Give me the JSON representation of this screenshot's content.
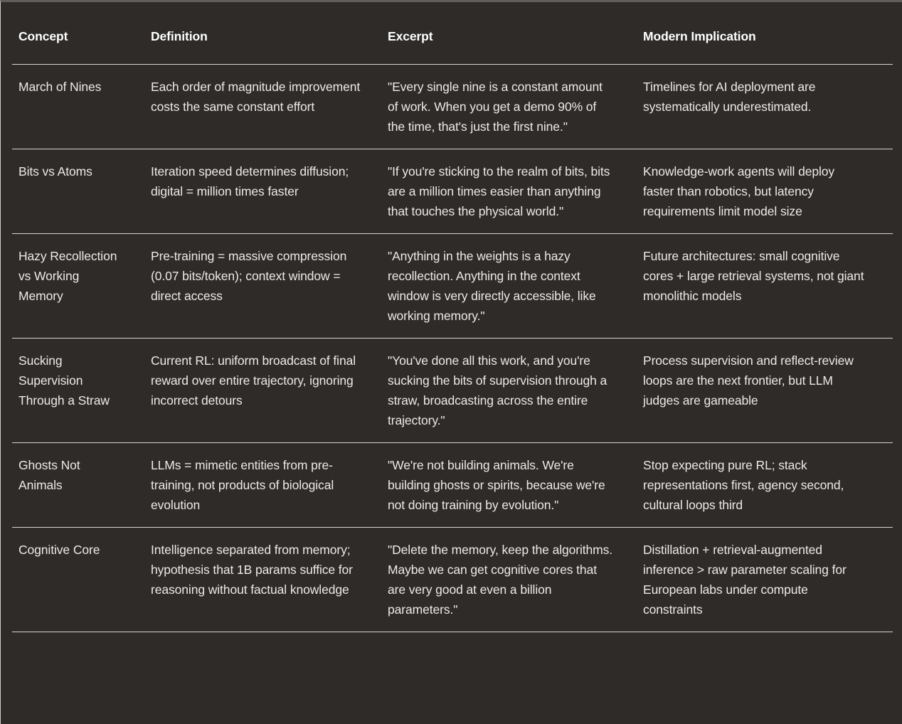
{
  "colors": {
    "background": "#2e2b29",
    "divider": "#d8d5d1",
    "header_text": "#ffffff",
    "body_text": "#eceae6"
  },
  "chart_data": {
    "type": "table",
    "columns": [
      "Concept",
      "Definition",
      "Excerpt",
      "Modern Implication"
    ],
    "rows": [
      {
        "concept": "March of Nines",
        "definition": "Each order of magnitude improvement costs the same constant effort",
        "excerpt": "\"Every single nine is a constant amount of work. When you get a demo 90% of the time, that's just the first nine.\"",
        "implication": "Timelines for AI deployment are systematically underestimated."
      },
      {
        "concept": "Bits vs Atoms",
        "definition": "Iteration speed determines diffusion; digital = million times faster",
        "excerpt": "\"If you're sticking to the realm of bits, bits are a million times easier than anything that touches the physical world.\"",
        "implication": "Knowledge-work agents will deploy faster than robotics, but latency requirements limit model size"
      },
      {
        "concept": "Hazy Recollection vs Working Memory",
        "definition": "Pre-training = massive compression (0.07 bits/token); context window = direct access",
        "excerpt": "\"Anything in the weights is a hazy recollection. Anything in the context window is very directly accessible, like working memory.\"",
        "implication": "Future architectures: small cognitive cores + large retrieval systems, not giant monolithic models"
      },
      {
        "concept": "Sucking Supervision Through a Straw",
        "definition": "Current RL: uniform broadcast of final reward over entire trajectory, ignoring incorrect detours",
        "excerpt": "\"You've done all this work, and you're sucking the bits of supervision through a straw, broadcasting across the entire trajectory.\"",
        "implication": "Process supervision and reflect-review loops are the next frontier, but LLM judges are gameable"
      },
      {
        "concept": "Ghosts Not Animals",
        "definition": "LLMs = mimetic entities from pre-training, not products of biological evolution",
        "excerpt": "\"We're not building animals. We're building ghosts or spirits, because we're not doing training by evolution.\"",
        "implication": "Stop expecting pure RL; stack representations first, agency second, cultural loops third"
      },
      {
        "concept": "Cognitive Core",
        "definition": "Intelligence separated from memory; hypothesis that 1B params suffice for reasoning without factual knowledge",
        "excerpt": "\"Delete the memory, keep the algorithms. Maybe we can get cognitive cores that are very good at even a billion parameters.\"",
        "implication": "Distillation + retrieval-augmented inference > raw parameter scaling for European labs under compute constraints"
      }
    ]
  }
}
